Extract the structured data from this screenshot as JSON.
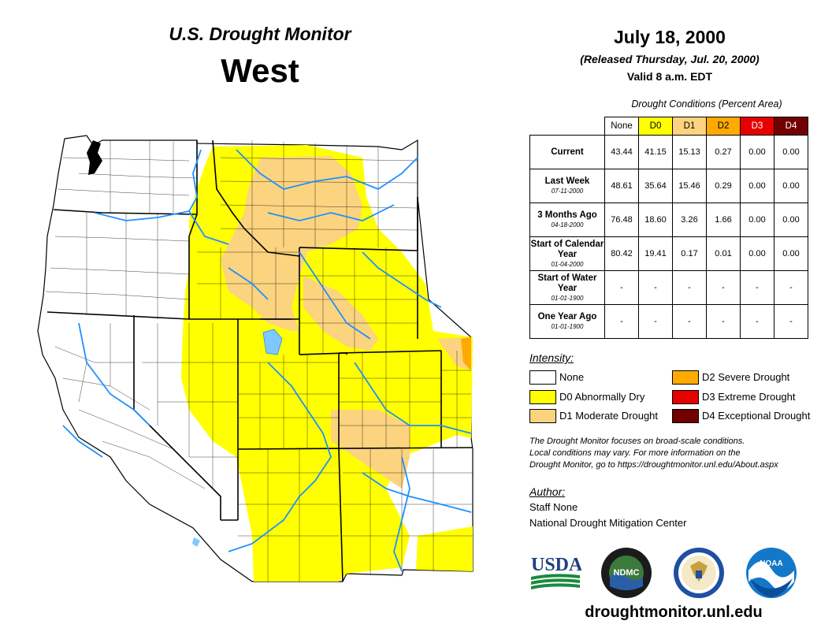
{
  "header": {
    "title": "U.S. Drought Monitor",
    "region": "West",
    "date": "July 18, 2000",
    "released": "(Released Thursday, Jul. 20, 2000)",
    "valid": "Valid 8 a.m. EDT"
  },
  "table": {
    "title": "Drought Conditions (Percent Area)",
    "columns": [
      {
        "label": "None",
        "color": "#ffffff",
        "text_color": "#000000"
      },
      {
        "label": "D0",
        "color": "#ffff00",
        "text_color": "#000000"
      },
      {
        "label": "D1",
        "color": "#fcd37f",
        "text_color": "#000000"
      },
      {
        "label": "D2",
        "color": "#ffaa00",
        "text_color": "#000000"
      },
      {
        "label": "D3",
        "color": "#e60000",
        "text_color": "#ffffff"
      },
      {
        "label": "D4",
        "color": "#730000",
        "text_color": "#ffffff"
      }
    ],
    "rows": [
      {
        "label": "Current",
        "sub": "",
        "values": [
          "43.44",
          "41.15",
          "15.13",
          "0.27",
          "0.00",
          "0.00"
        ]
      },
      {
        "label": "Last Week",
        "sub": "07-11-2000",
        "values": [
          "48.61",
          "35.64",
          "15.46",
          "0.29",
          "0.00",
          "0.00"
        ]
      },
      {
        "label": "3 Months Ago",
        "sub": "04-18-2000",
        "values": [
          "76.48",
          "18.60",
          "3.26",
          "1.66",
          "0.00",
          "0.00"
        ]
      },
      {
        "label": "Start of Calendar Year",
        "sub": "01-04-2000",
        "values": [
          "80.42",
          "19.41",
          "0.17",
          "0.01",
          "0.00",
          "0.00"
        ]
      },
      {
        "label": "Start of Water Year",
        "sub": "01-01-1900",
        "values": [
          "-",
          "-",
          "-",
          "-",
          "-",
          "-"
        ]
      },
      {
        "label": "One Year Ago",
        "sub": "01-01-1900",
        "values": [
          "-",
          "-",
          "-",
          "-",
          "-",
          "-"
        ]
      }
    ]
  },
  "legend": {
    "title": "Intensity:",
    "items": [
      {
        "label": "None",
        "color": "#ffffff"
      },
      {
        "label": "D0 Abnormally Dry",
        "color": "#ffff00"
      },
      {
        "label": "D1 Moderate Drought",
        "color": "#fcd37f"
      },
      {
        "label": "D2 Severe Drought",
        "color": "#ffaa00"
      },
      {
        "label": "D3 Extreme Drought",
        "color": "#e60000"
      },
      {
        "label": "D4 Exceptional Drought",
        "color": "#730000"
      }
    ]
  },
  "note": {
    "line1": "The Drought Monitor focuses on broad-scale conditions.",
    "line2": "Local conditions may vary. For more information on the",
    "line3": "Drought Monitor, go to https://droughtmonitor.unl.edu/About.aspx"
  },
  "author": {
    "title": "Author:",
    "name": "Staff None",
    "org": "National Drought Mitigation Center"
  },
  "logos": {
    "usda": "USDA",
    "ndmc": "NDMC",
    "noaa": "NOAA"
  },
  "website": "droughtmonitor.unl.edu",
  "colors": {
    "river": "#1e90ff",
    "lake": "#7fc8ff",
    "border": "#000000"
  }
}
